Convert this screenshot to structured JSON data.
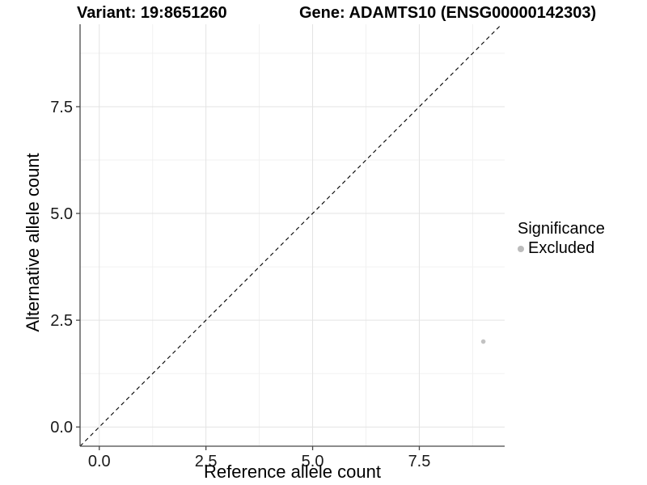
{
  "title": {
    "variant": "Variant: 19:8651260",
    "gene": "Gene: ADAMTS10 (ENSG00000142303)"
  },
  "axes": {
    "x_title": "Reference allele count",
    "y_title": "Alternative allele count"
  },
  "legend": {
    "title": "Significance",
    "position": "right",
    "items": [
      {
        "label": "Excluded",
        "color": "#bcbcbc"
      }
    ]
  },
  "chart_data": {
    "type": "scatter",
    "title": "Variant: 19:8651260   Gene: ADAMTS10 (ENSG00000142303)",
    "xlabel": "Reference allele count",
    "ylabel": "Alternative allele count",
    "xlim": [
      -0.45,
      9.5
    ],
    "ylim": [
      -0.45,
      9.43
    ],
    "x_ticks": [
      0,
      2.5,
      5,
      7.5
    ],
    "y_ticks": [
      0,
      2.5,
      5,
      7.5
    ],
    "x_tick_labels": [
      "0.0",
      "2.5",
      "5.0",
      "7.5"
    ],
    "y_tick_labels": [
      "0.0",
      "2.5",
      "5.0",
      "7.5"
    ],
    "x_minor": [
      1.25,
      3.75,
      6.25,
      8.75
    ],
    "y_minor": [
      1.25,
      3.75,
      6.25,
      8.75
    ],
    "grid": true,
    "reference_line": {
      "type": "identity",
      "slope": 1,
      "intercept": 0,
      "style": "dashed",
      "color": "#000000"
    },
    "series": [
      {
        "name": "Excluded",
        "color": "#c2c2c2",
        "points": [
          {
            "x": 9,
            "y": 2
          }
        ]
      }
    ],
    "legend_title": "Significance",
    "colors": {
      "grid_major": "#e3e3e3",
      "grid_minor": "#f1f1f1",
      "axis_line": "#474747",
      "tick_text": "#1a1a1a",
      "dashed_line": "#000000",
      "background": "#ffffff"
    }
  }
}
